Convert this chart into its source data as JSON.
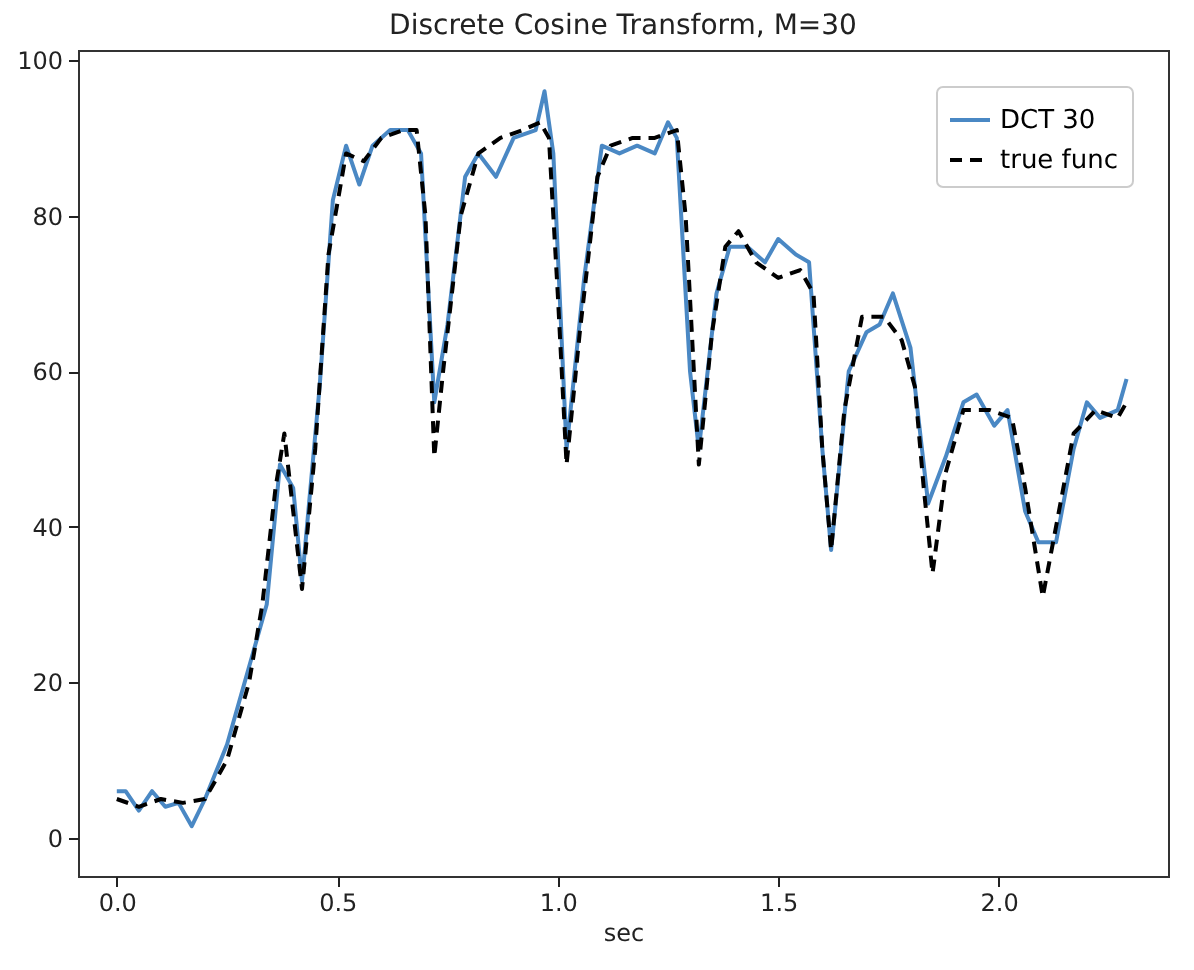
{
  "chart_data": {
    "type": "line",
    "title": "Discrete Cosine Transform, M=30",
    "xlabel": "sec",
    "xlim": [
      -0.088,
      2.384
    ],
    "ylim": [
      -4.9,
      101.3
    ],
    "xticks": [
      {
        "value": 0,
        "label": "0.0"
      },
      {
        "value": 0.5,
        "label": "0.5"
      },
      {
        "value": 1,
        "label": "1.0"
      },
      {
        "value": 1.5,
        "label": "1.5"
      },
      {
        "value": 2,
        "label": "2.0"
      }
    ],
    "yticks": [
      0,
      20,
      40,
      60,
      80,
      100
    ],
    "grid": false,
    "legend": "top right",
    "series": [
      {
        "name": "DCT 30",
        "color": "#4a88c4",
        "line_style": "solid",
        "x": [
          0,
          0.02,
          0.05,
          0.08,
          0.11,
          0.14,
          0.17,
          0.2,
          0.25,
          0.3,
          0.34,
          0.37,
          0.4,
          0.42,
          0.46,
          0.49,
          0.52,
          0.55,
          0.58,
          0.62,
          0.66,
          0.69,
          0.72,
          0.75,
          0.79,
          0.82,
          0.86,
          0.9,
          0.95,
          0.97,
          0.99,
          1.02,
          1.06,
          1.1,
          1.14,
          1.18,
          1.22,
          1.25,
          1.27,
          1.3,
          1.32,
          1.36,
          1.39,
          1.43,
          1.47,
          1.5,
          1.54,
          1.57,
          1.6,
          1.62,
          1.66,
          1.7,
          1.73,
          1.76,
          1.8,
          1.84,
          1.88,
          1.92,
          1.95,
          1.99,
          2.02,
          2.06,
          2.09,
          2.13,
          2.17,
          2.2,
          2.23,
          2.27,
          2.29
        ],
        "values": [
          6,
          6,
          3.5,
          6,
          4,
          4.5,
          1.5,
          5,
          12,
          22,
          30,
          48,
          45,
          33,
          58,
          82,
          89,
          84,
          89,
          91,
          91,
          88,
          56,
          66,
          85,
          88,
          85,
          90,
          91,
          96,
          88,
          50,
          72,
          89,
          88,
          89,
          88,
          92,
          90,
          60,
          50,
          70,
          76,
          76,
          74,
          77,
          75,
          74,
          50,
          37,
          60,
          65,
          66,
          70,
          63,
          43,
          49,
          56,
          57,
          53,
          55,
          42,
          38,
          38,
          50,
          56,
          54,
          55,
          59
        ]
      },
      {
        "name": "true func",
        "color": "#000000",
        "line_style": "dashed",
        "x": [
          0,
          0.05,
          0.1,
          0.15,
          0.2,
          0.25,
          0.3,
          0.33,
          0.36,
          0.38,
          0.42,
          0.45,
          0.48,
          0.52,
          0.56,
          0.6,
          0.65,
          0.68,
          0.7,
          0.72,
          0.74,
          0.78,
          0.82,
          0.87,
          0.92,
          0.96,
          0.98,
          1,
          1.02,
          1.05,
          1.09,
          1.12,
          1.17,
          1.22,
          1.27,
          1.29,
          1.32,
          1.35,
          1.38,
          1.41,
          1.45,
          1.5,
          1.55,
          1.58,
          1.6,
          1.62,
          1.65,
          1.69,
          1.74,
          1.78,
          1.81,
          1.83,
          1.85,
          1.88,
          1.92,
          1.98,
          2.03,
          2.06,
          2.1,
          2.13,
          2.17,
          2.22,
          2.27,
          2.29
        ],
        "values": [
          5,
          4,
          5,
          4.5,
          5,
          10,
          20,
          30,
          45,
          52,
          32,
          50,
          75,
          88,
          87,
          90,
          91,
          91,
          80,
          49,
          60,
          80,
          88,
          90,
          91,
          92,
          90,
          70,
          48,
          65,
          85,
          89,
          90,
          90,
          91,
          80,
          48,
          65,
          76,
          78,
          74,
          72,
          73,
          70,
          50,
          37,
          55,
          67,
          67,
          64,
          58,
          45,
          34,
          47,
          55,
          55,
          54,
          45,
          31,
          40,
          52,
          55,
          54,
          56
        ]
      }
    ]
  }
}
